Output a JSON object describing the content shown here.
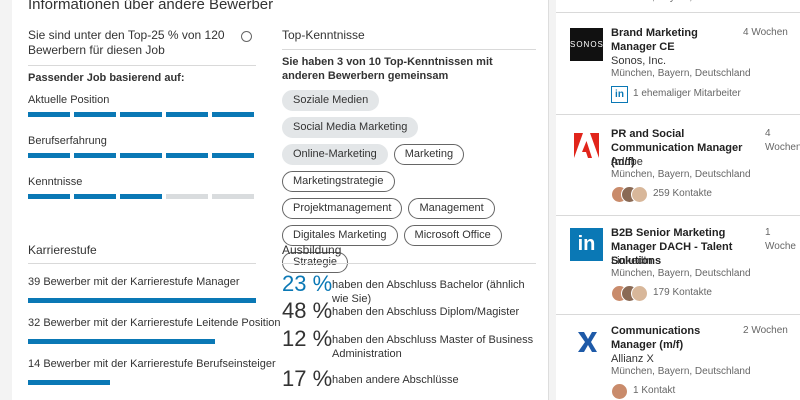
{
  "header": {
    "title": "Informationen über andere Bewerber"
  },
  "ranking": {
    "text": "Sie sind unter den Top-25 % von 120 Bewerbern für diesen Job",
    "match_title": "Passender Job basierend auf:",
    "criteria": [
      {
        "label": "Aktuelle Position",
        "level": 5
      },
      {
        "label": "Berufserfahrung",
        "level": 5
      },
      {
        "label": "Kenntnisse",
        "level": 3
      }
    ]
  },
  "career": {
    "title": "Karrierestufe",
    "rows": [
      {
        "count": 39,
        "label": "Bewerber mit der Karrierestufe Manager"
      },
      {
        "count": 32,
        "label": "Bewerber mit der Karrierestufe Leitende Position"
      },
      {
        "count": 14,
        "label": "Bewerber mit der Karrierestufe Berufseinsteiger"
      }
    ]
  },
  "skills": {
    "title": "Top-Kenntnisse",
    "summary": "Sie haben 3 von 10 Top-Kenntnissen mit anderen Bewerbern gemeinsam",
    "tags": [
      {
        "name": "Soziale Medien",
        "shared": true
      },
      {
        "name": "Social Media Marketing",
        "shared": true
      },
      {
        "name": "Online-Marketing",
        "shared": true
      },
      {
        "name": "Marketing",
        "shared": false
      },
      {
        "name": "Marketingstrategie",
        "shared": false
      },
      {
        "name": "Projektmanagement",
        "shared": false
      },
      {
        "name": "Management",
        "shared": false
      },
      {
        "name": "Digitales Marketing",
        "shared": false
      },
      {
        "name": "Microsoft Office",
        "shared": false
      },
      {
        "name": "Strategie",
        "shared": false
      }
    ]
  },
  "education": {
    "title": "Ausbildung",
    "rows": [
      {
        "percent": "23 %",
        "text": "haben den Abschluss Bachelor (ähnlich wie Sie)",
        "highlight": true
      },
      {
        "percent": "48 %",
        "text": "haben den Abschluss Diplom/Magister",
        "highlight": false
      },
      {
        "percent": "12 %",
        "text": "haben den Abschluss Master of Business Administration",
        "highlight": false
      },
      {
        "percent": "17 %",
        "text": "haben andere Abschlüsse",
        "highlight": false
      }
    ]
  },
  "jobs": {
    "top_location": "München, Bayern, Deutschland",
    "items": [
      {
        "title": "Brand Marketing Manager CE",
        "age": "4 Wochen",
        "company": "Sonos, Inc.",
        "location": "München, Bayern, Deutschland",
        "logo_text": "SONOS",
        "connection": "1 ehemaliger Mitarbeiter"
      },
      {
        "title": "PR and Social Communication Manager (m/f)",
        "age": "4 Wochen",
        "company": "Adobe",
        "location": "München, Bayern, Deutschland",
        "connection": "259 Kontakte"
      },
      {
        "title": "B2B Senior Marketing Manager DACH - Talent Solutions",
        "age": "1 Woche",
        "company": "LinkedIn",
        "location": "München, Bayern, Deutschland",
        "connection": "179 Kontakte"
      },
      {
        "title": "Communications Manager (m/f)",
        "age": "2 Wochen",
        "company": "Allianz X",
        "location": "München, Bayern, Deutschland",
        "connection": "1 Kontakt"
      }
    ]
  }
}
